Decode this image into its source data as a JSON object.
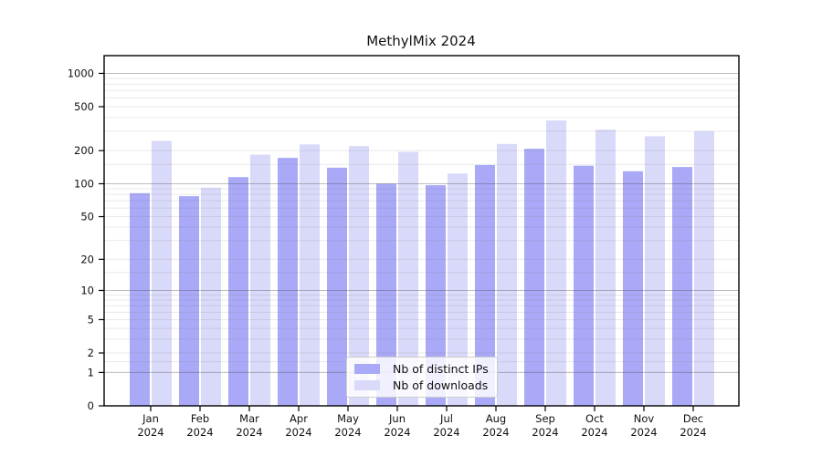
{
  "title": "MethylMix 2024",
  "legend": {
    "items": [
      {
        "label": "Nb of distinct IPs",
        "color": "#a9a9f7"
      },
      {
        "label": "Nb of downloads",
        "color": "#d9d9fa"
      }
    ]
  },
  "axes": {
    "y_tick_labels": [
      "0",
      "1",
      "2",
      "5",
      "10",
      "20",
      "50",
      "100",
      "200",
      "500",
      "1000"
    ],
    "x_tick_year": "2024"
  },
  "chart_data": {
    "type": "bar",
    "title": "MethylMix 2024",
    "categories": [
      "Jan",
      "Feb",
      "Mar",
      "Apr",
      "May",
      "Jun",
      "Jul",
      "Aug",
      "Sep",
      "Oct",
      "Nov",
      "Dec"
    ],
    "category_year": "2024",
    "series": [
      {
        "name": "Nb of distinct IPs",
        "color": "#a9a9f7",
        "values": [
          82,
          77,
          115,
          172,
          140,
          100,
          97,
          148,
          208,
          146,
          130,
          142
        ]
      },
      {
        "name": "Nb of downloads",
        "color": "#d9d9fa",
        "values": [
          245,
          92,
          184,
          228,
          220,
          195,
          124,
          230,
          375,
          310,
          270,
          300
        ]
      }
    ],
    "xlabel": "",
    "ylabel": "",
    "y_scale": "log10(value+1)",
    "y_ticks": [
      0,
      1,
      2,
      5,
      10,
      20,
      50,
      100,
      200,
      500,
      1000
    ],
    "ylim": [
      0,
      1466
    ],
    "grid": "horizontal",
    "major_grid_at": [
      1,
      10,
      100,
      1000
    ],
    "legend_position": "lower center",
    "colors": {
      "major_grid": "rgba(70,70,70,0.36)",
      "minor_grid": "rgba(120,120,120,0.16)",
      "spine": "#000000",
      "text": "#111111"
    }
  }
}
